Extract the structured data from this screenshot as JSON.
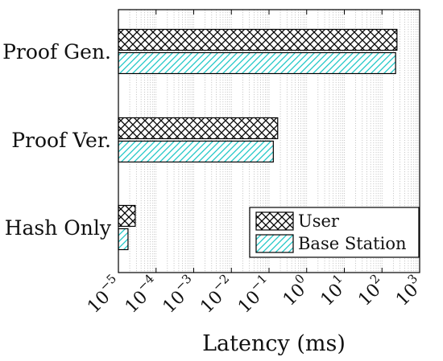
{
  "chart_data": {
    "type": "bar",
    "orientation": "horizontal",
    "categories": [
      "Proof Gen.",
      "Proof Ver.",
      "Hash Only"
    ],
    "series": [
      {
        "name": "User",
        "values": [
          250,
          0.17,
          2.8e-05
        ],
        "color": "#000000",
        "pattern": "crosshatch"
      },
      {
        "name": "Base Station",
        "values": [
          230,
          0.13,
          1.8e-05
        ],
        "color": "#1fc7c7",
        "pattern": "diagonal"
      }
    ],
    "xlabel": "Latency (ms)",
    "xscale": "log",
    "xlim": [
      1e-05,
      1000
    ],
    "xticks": [
      1e-05,
      0.0001,
      0.001,
      0.01,
      0.1,
      1,
      10,
      100,
      1000
    ],
    "xtick_labels": [
      {
        "base": "10",
        "exp": "−5"
      },
      {
        "base": "10",
        "exp": "−4"
      },
      {
        "base": "10",
        "exp": "−3"
      },
      {
        "base": "10",
        "exp": "−2"
      },
      {
        "base": "10",
        "exp": "−1"
      },
      {
        "base": "10",
        "exp": "0"
      },
      {
        "base": "10",
        "exp": "1"
      },
      {
        "base": "10",
        "exp": "2"
      },
      {
        "base": "10",
        "exp": "3"
      }
    ],
    "grid": true,
    "legend_position": "bottom-right"
  }
}
